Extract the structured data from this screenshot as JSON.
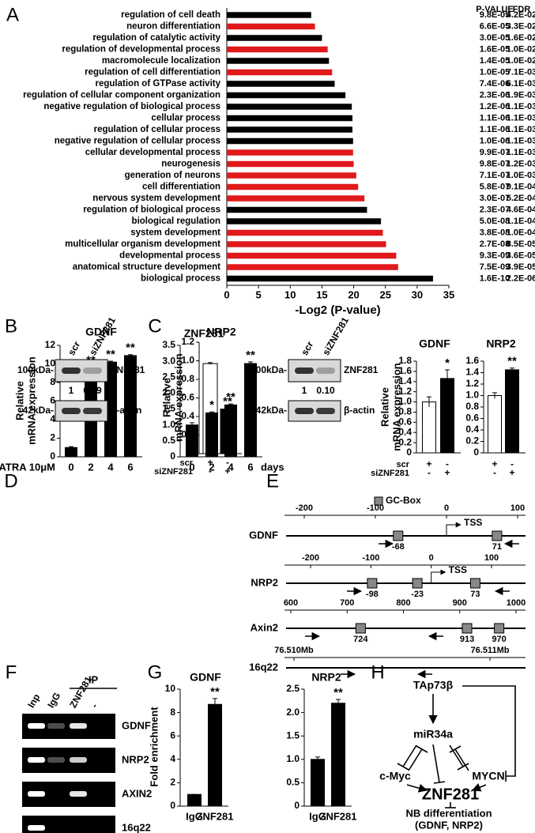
{
  "panel_labels": [
    "A",
    "B",
    "C",
    "D",
    "E",
    "F",
    "G",
    "H"
  ],
  "chart_data": [
    {
      "type": "bar",
      "orientation": "horizontal",
      "categories": [
        "regulation of cell death",
        "neuron differentiation",
        "regulation of catalytic activity",
        "regulation of developmental process",
        "macromolecule localization",
        "regulation of cell differentiation",
        "regulation of GTPase activity",
        "regulation of cellular component organization",
        "negative regulation of biological process",
        "cellular process",
        "regulation of cellular process",
        "negative regulation of cellular process",
        "cellular developmental process",
        "neurogenesis",
        "generation of neurons",
        "cell differentiation",
        "nervous system development",
        "regulation of biological process",
        "biological regulation",
        "system development",
        "multicellular organism development",
        "developmental process",
        "anatomical structure development",
        "biological process"
      ],
      "values": [
        13.3,
        13.9,
        15.0,
        15.9,
        16.1,
        16.6,
        17.0,
        18.7,
        19.7,
        19.8,
        19.8,
        19.9,
        19.9,
        20.0,
        20.4,
        20.7,
        21.7,
        22.1,
        24.3,
        24.6,
        25.1,
        26.7,
        27.0,
        32.5
      ],
      "colors": [
        "#000000",
        "#e0191b",
        "#000000",
        "#e0191b",
        "#000000",
        "#e0191b",
        "#000000",
        "#000000",
        "#000000",
        "#000000",
        "#000000",
        "#000000",
        "#e0191b",
        "#e0191b",
        "#e0191b",
        "#e0191b",
        "#e0191b",
        "#000000",
        "#000000",
        "#e0191b",
        "#e0191b",
        "#e0191b",
        "#e0191b",
        "#000000"
      ],
      "columns": [
        "P-VALUE",
        "FDR"
      ],
      "p_values": [
        "9.8E-05",
        "6.6E-05",
        "3.0E-05",
        "1.6E-05",
        "1.4E-05",
        "1.0E-05",
        "7.4E-06",
        "2.3E-06",
        "1.2E-06",
        "1.1E-06",
        "1.1E-06",
        "1.0E-06",
        "9.9E-07",
        "9.8E-07",
        "7.1E-07",
        "5.8E-07",
        "3.0E-07",
        "2.3E-07",
        "5.0E-08",
        "3.8E-08",
        "2.7E-08",
        "9.3E-09",
        "7.5E-09",
        "1.6E-10"
      ],
      "fdr": [
        "4.2E-02",
        "3.3E-02",
        "1.6E-02",
        "1.0E-02",
        "1.0E-02",
        "7.1E-03",
        "6.1E-03",
        "1.9E-03",
        "1.1E-03",
        "1.1E-03",
        "1.1E-03",
        "1.1E-03",
        "1.1E-03",
        "1.2E-03",
        "1.0E-03",
        "9.1E-04",
        "5.2E-04",
        "4.6E-04",
        "1.1E-04",
        "1.0E-04",
        "8.5E-05",
        "3.6E-05",
        "3.9E-05",
        "2.2E-06"
      ],
      "xlim": [
        0,
        35
      ],
      "xticks": [
        0,
        5,
        10,
        15,
        20,
        25,
        30,
        35
      ],
      "xlabel": "-Log2 (P-value)"
    },
    {
      "type": "bar",
      "title": "ZNF281",
      "ylabel": [
        "Relative",
        "mRNA expression"
      ],
      "values": [
        0.97,
        0.48
      ],
      "errors": [
        0.01,
        0.01
      ],
      "colors": [
        "#ffffff",
        "#000000"
      ],
      "annotations": [
        null,
        "**"
      ],
      "ylim": [
        0,
        1.2
      ],
      "yticks": [
        0,
        0.2,
        0.4,
        0.6,
        0.8,
        {
          "value": 1,
          "label": "1.0"
        },
        1.2
      ]
    },
    {
      "type": "bar",
      "title": "GDNF",
      "ylabel": [
        "Relative",
        "mRNA expression"
      ],
      "values": [
        1.0,
        1.46
      ],
      "errors": [
        0.1,
        0.17
      ],
      "colors": [
        "#ffffff",
        "#000000"
      ],
      "annotations": [
        null,
        "*"
      ],
      "ylim": [
        0,
        1.8
      ],
      "yticks": [
        0,
        0.2,
        0.4,
        0.6,
        0.8,
        {
          "value": 1,
          "label": "1.0"
        },
        1.2,
        1.4,
        1.6,
        1.8
      ]
    },
    {
      "type": "bar",
      "title": "NRP2",
      "values": [
        1.0,
        1.45
      ],
      "errors": [
        0.05,
        0.03
      ],
      "colors": [
        "#ffffff",
        "#000000"
      ],
      "annotations": [
        null,
        "**"
      ],
      "ylim": [
        0,
        1.6
      ],
      "yticks": [
        0,
        0.2,
        0.4,
        0.6,
        0.8,
        {
          "value": 1,
          "label": "1.0"
        },
        1.2,
        1.4,
        1.6
      ]
    },
    {
      "type": "bar",
      "title": "GDNF",
      "ylabel": [
        "Relative",
        "mRNA expression"
      ],
      "xlabel": "ATRA 10μM",
      "categories": [
        "0",
        "2",
        "4",
        "6"
      ],
      "values": [
        1.0,
        9.5,
        10.2,
        10.9
      ],
      "errors": [
        0.1,
        0.15,
        0.1,
        0.1
      ],
      "colors": [
        "#000000",
        "#000000",
        "#000000",
        "#000000"
      ],
      "annotations": [
        null,
        "**",
        "**",
        "**"
      ],
      "ylim": [
        0,
        12
      ],
      "yticks": [
        0,
        2,
        4,
        6,
        8,
        10,
        12
      ]
    },
    {
      "type": "bar",
      "title": "NRP2",
      "xlabel": "days",
      "categories": [
        "0",
        "2",
        "4",
        "6"
      ],
      "values": [
        1.0,
        1.38,
        1.63,
        2.93
      ],
      "errors": [
        0.07,
        0.03,
        0.03,
        0.05
      ],
      "colors": [
        "#000000",
        "#000000",
        "#000000",
        "#000000"
      ],
      "annotations": [
        null,
        "*",
        "**",
        "**"
      ],
      "ylim": [
        0,
        3.5
      ],
      "yticks": [
        0,
        0.5,
        {
          "value": 1,
          "label": "1.0"
        },
        1.5,
        {
          "value": 2,
          "label": "2.0"
        },
        2.5,
        {
          "value": 3,
          "label": "3.0"
        },
        3.5
      ]
    },
    {
      "type": "bar",
      "title": "GDNF",
      "ylabel": [
        "Fold enrichment"
      ],
      "categories": [
        "IgG",
        "ZNF281"
      ],
      "values": [
        1.0,
        8.7
      ],
      "errors": [
        0,
        0.5
      ],
      "colors": [
        "#000000",
        "#000000"
      ],
      "annotations": [
        null,
        "**"
      ],
      "ylim": [
        0,
        10
      ],
      "yticks": [
        0,
        2,
        4,
        6,
        8,
        10
      ]
    },
    {
      "type": "bar",
      "title": "NRP2",
      "categories": [
        "IgG",
        "ZNF281"
      ],
      "values": [
        1.0,
        2.2
      ],
      "errors": [
        0.05,
        0.08
      ],
      "colors": [
        "#000000",
        "#000000"
      ],
      "annotations": [
        null,
        "**"
      ],
      "ylim": [
        0,
        2.5
      ],
      "yticks": [
        0,
        0.5,
        {
          "value": 1,
          "label": "1.0"
        },
        1.5,
        {
          "value": 2,
          "label": "2.0"
        },
        2.5
      ]
    }
  ],
  "conditions": [
    {
      "name": "scr",
      "signs": [
        "+",
        "-"
      ]
    },
    {
      "name": "siZNF281",
      "signs": [
        "-",
        "+"
      ]
    }
  ],
  "blots": [
    {
      "lanes": [
        "scr",
        "siZNF281"
      ],
      "markers": [
        "100kDa-",
        "42kDa-"
      ],
      "proteins": [
        "ZNF281",
        "β-actin"
      ],
      "quantification": [
        "1",
        "0.19"
      ]
    },
    {
      "lanes": [
        "scr",
        "siZNF281"
      ],
      "markers": [
        "100kDa-",
        "42kDa-"
      ],
      "proteins": [
        "ZNF281",
        "β-actin"
      ],
      "quantification": [
        "1",
        "0.10"
      ]
    }
  ],
  "promoters": {
    "legend": "GC-Box",
    "genes": [
      {
        "name": "GDNF",
        "ticks": [
          "-200",
          "-100",
          "0",
          "100"
        ],
        "tss": "TSS",
        "boxes": [
          "-68",
          "71"
        ]
      },
      {
        "name": "NRP2",
        "ticks": [
          "-200",
          "-100",
          "0",
          "100"
        ],
        "tss": "TSS",
        "boxes": [
          "-98",
          "-23",
          "73"
        ]
      },
      {
        "name": "Axin2",
        "ticks": [
          "600",
          "700",
          "800",
          "900",
          "1000"
        ],
        "boxes": [
          "724",
          "913",
          "970"
        ]
      },
      {
        "name": "16q22",
        "ticks": [
          "76.510Mb",
          "76.511Mb"
        ]
      }
    ]
  },
  "chip_gel": {
    "ip": "IP",
    "lanes": [
      "Inp",
      "IgG",
      "ZNF281",
      "-"
    ],
    "targets": [
      "GDNF",
      "NRP2",
      "AXIN2",
      "16q22"
    ]
  },
  "pathway": {
    "nodes": [
      "TAp73β",
      "miR34a",
      "c-Myc",
      "MYCN",
      "ZNF281"
    ],
    "outcome": [
      "NB differentiation",
      "(GDNF, NRP2)"
    ]
  }
}
